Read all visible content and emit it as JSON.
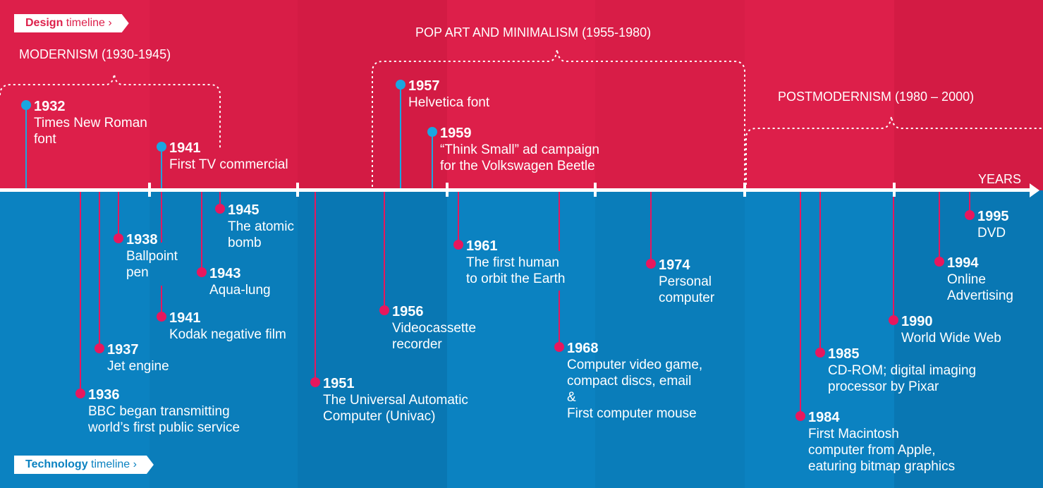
{
  "colors": {
    "design": "#dd1f4a",
    "technology": "#0b82c1",
    "design_marker": "#1aa6e0",
    "technology_marker": "#e8175d",
    "axis": "#ffffff"
  },
  "design_pill": {
    "bold": "Design",
    "rest": " timeline ›"
  },
  "technology_pill": {
    "bold": "Technology",
    "rest": " timeline ›"
  },
  "axis_label": "YEARS",
  "eras": [
    {
      "label": "MODERNISM (1930-1945)"
    },
    {
      "label": "POP ART AND MINIMALISM (1955-1980)"
    },
    {
      "label": "POSTMODERNISM (1980 – 2000)"
    }
  ],
  "design_events": [
    {
      "year": "1932",
      "text": "Times New Roman\nfont"
    },
    {
      "year": "1941",
      "text": "First TV commercial"
    },
    {
      "year": "1957",
      "text": "Helvetica font"
    },
    {
      "year": "1959",
      "text": "“Think Small” ad campaign\nfor the Volkswagen Beetle"
    }
  ],
  "technology_events": [
    {
      "year": "1945",
      "text": "The atomic\nbomb"
    },
    {
      "year": "1938",
      "text": "Ballpoint\npen"
    },
    {
      "year": "1943",
      "text": "Aqua-lung"
    },
    {
      "year": "1941",
      "text": "Kodak negative film"
    },
    {
      "year": "1937",
      "text": "Jet engine"
    },
    {
      "year": "1936",
      "text": "BBC began transmitting\nworld’s first public service"
    },
    {
      "year": "1956",
      "text": "Videocassette\nrecorder"
    },
    {
      "year": "1951",
      "text": "The Universal Automatic\nComputer (Univac)"
    },
    {
      "year": "1961",
      "text": "The first human\nto orbit the Earth"
    },
    {
      "year": "1968",
      "text": "Computer video game,\ncompact discs, email\n&\nFirst computer mouse"
    },
    {
      "year": "1974",
      "text": "Personal\ncomputer"
    },
    {
      "year": "1995",
      "text": "DVD"
    },
    {
      "year": "1994",
      "text": "Online\nAdvertising"
    },
    {
      "year": "1990",
      "text": "World Wide Web"
    },
    {
      "year": "1985",
      "text": "CD-ROM; digital imaging\nprocessor by Pixar"
    },
    {
      "year": "1984",
      "text": "First Macintosh\ncomputer from Apple,\neaturing bitmap graphics"
    }
  ]
}
